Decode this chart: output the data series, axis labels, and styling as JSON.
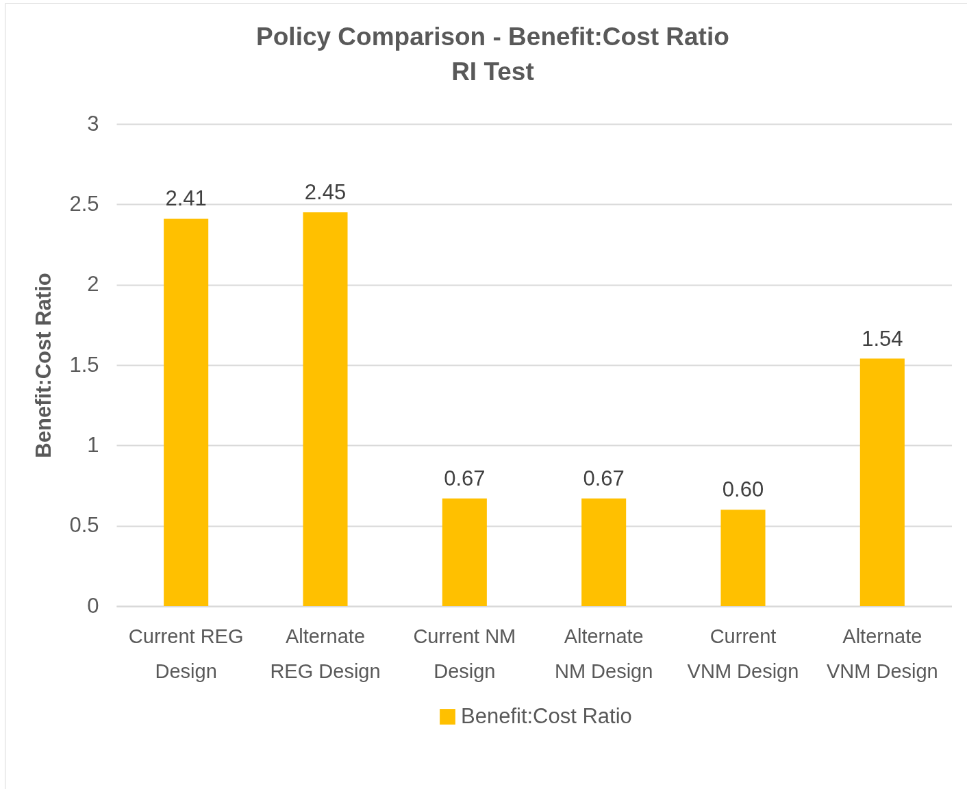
{
  "chart_data": {
    "type": "bar",
    "title": "Policy Comparison - Benefit:Cost Ratio",
    "subtitle": "RI Test",
    "ylabel": "Benefit:Cost Ratio",
    "categories": [
      "Current REG Design",
      "Alternate REG Design",
      "Current NM Design",
      "Alternate NM Design",
      "Current VNM Design",
      "Alternate VNM Design"
    ],
    "series": [
      {
        "name": "Benefit:Cost Ratio",
        "color": "#ffc000",
        "values": [
          2.41,
          2.45,
          0.67,
          0.67,
          0.6,
          1.54
        ],
        "value_labels": [
          "2.41",
          "2.45",
          "0.67",
          "0.67",
          "0.60",
          "1.54"
        ]
      }
    ],
    "ylim": [
      0,
      3
    ],
    "yticks": [
      0,
      0.5,
      1,
      1.5,
      2,
      2.5,
      3
    ],
    "grid": "y",
    "legend": "bottom"
  }
}
